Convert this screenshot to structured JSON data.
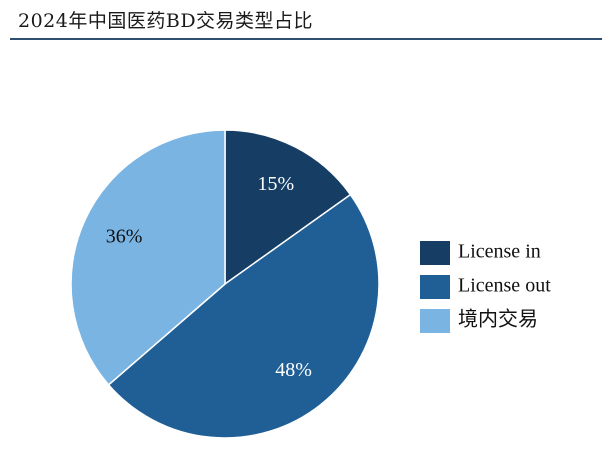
{
  "title": "2024年中国医药BD交易类型占比",
  "chart_data": {
    "type": "pie",
    "categories": [
      "License in",
      "License out",
      "境内交易"
    ],
    "values": [
      15,
      48,
      36
    ],
    "labels": [
      "15%",
      "48%",
      "36%"
    ],
    "colors": [
      "#163d63",
      "#1f5f96",
      "#79b4e3"
    ],
    "label_colors": [
      "#ffffff",
      "#ffffff",
      "#111111"
    ],
    "legend_position": "right"
  }
}
